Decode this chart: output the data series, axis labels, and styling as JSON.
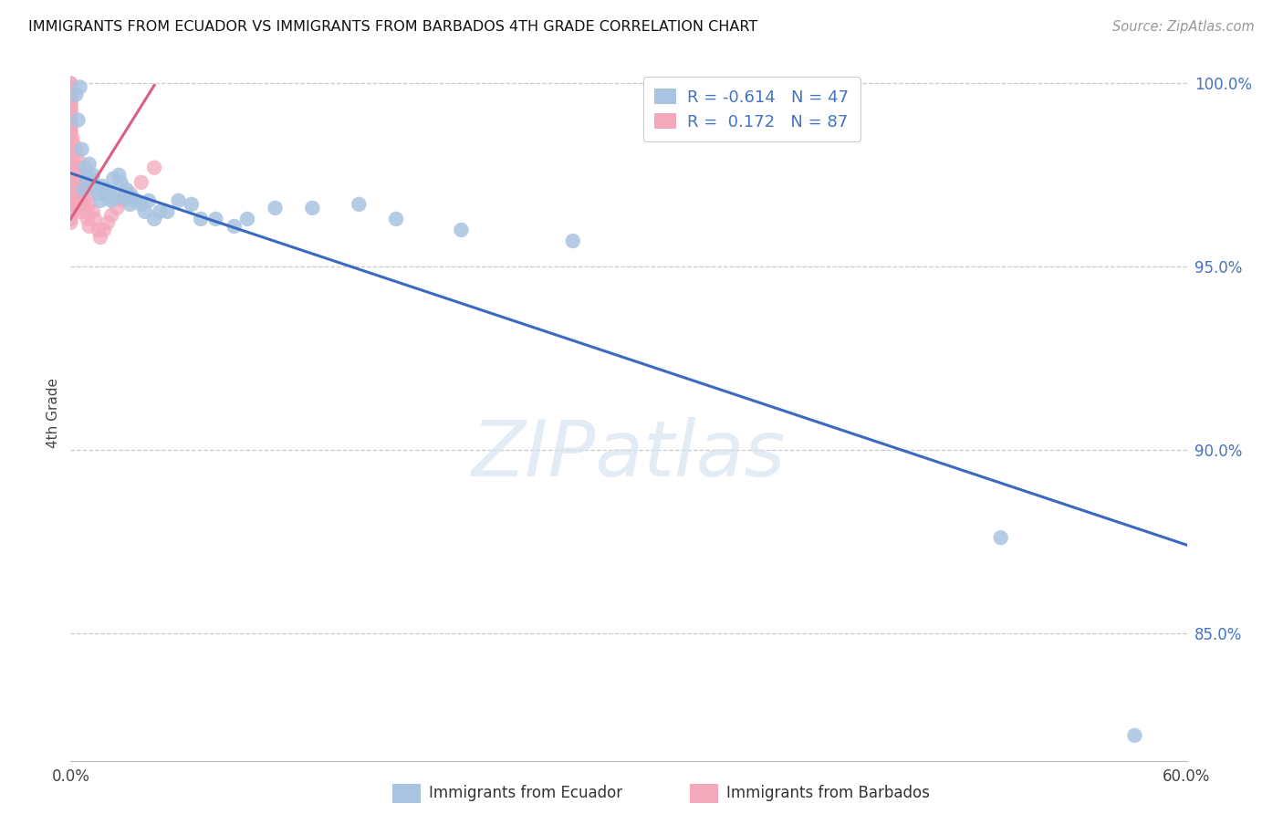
{
  "title": "IMMIGRANTS FROM ECUADOR VS IMMIGRANTS FROM BARBADOS 4TH GRADE CORRELATION CHART",
  "source": "Source: ZipAtlas.com",
  "ylabel": "4th Grade",
  "xlim": [
    0.0,
    0.6
  ],
  "ylim": [
    0.815,
    1.005
  ],
  "grid_color": "#cccccc",
  "background_color": "#ffffff",
  "ecuador_color": "#a8c4e0",
  "barbados_color": "#f4a8bc",
  "ecuador_line_color": "#3a6abf",
  "barbados_line_color": "#d96080",
  "legend_ecuador_label": "Immigrants from Ecuador",
  "legend_barbados_label": "Immigrants from Barbados",
  "R_ecuador": -0.614,
  "N_ecuador": 47,
  "R_barbados": 0.172,
  "N_barbados": 87,
  "ecuador_x": [
    0.003,
    0.004,
    0.005,
    0.006,
    0.007,
    0.008,
    0.009,
    0.01,
    0.011,
    0.012,
    0.013,
    0.015,
    0.016,
    0.017,
    0.018,
    0.02,
    0.021,
    0.022,
    0.023,
    0.025,
    0.026,
    0.027,
    0.029,
    0.03,
    0.032,
    0.033,
    0.035,
    0.038,
    0.04,
    0.042,
    0.045,
    0.048,
    0.052,
    0.058,
    0.065,
    0.07,
    0.078,
    0.088,
    0.095,
    0.11,
    0.13,
    0.155,
    0.175,
    0.21,
    0.27,
    0.5,
    0.572
  ],
  "ecuador_y": [
    0.997,
    0.99,
    0.999,
    0.982,
    0.971,
    0.977,
    0.974,
    0.978,
    0.974,
    0.975,
    0.972,
    0.97,
    0.968,
    0.972,
    0.971,
    0.969,
    0.97,
    0.968,
    0.974,
    0.969,
    0.975,
    0.973,
    0.969,
    0.971,
    0.967,
    0.969,
    0.968,
    0.967,
    0.965,
    0.968,
    0.963,
    0.965,
    0.965,
    0.968,
    0.967,
    0.963,
    0.963,
    0.961,
    0.963,
    0.966,
    0.966,
    0.967,
    0.963,
    0.96,
    0.957,
    0.876,
    0.822
  ],
  "barbados_x": [
    0.0,
    0.0,
    0.0,
    0.0,
    0.0,
    0.0,
    0.0,
    0.0,
    0.0,
    0.0,
    0.0,
    0.0,
    0.0,
    0.0,
    0.0,
    0.0,
    0.0,
    0.0,
    0.0,
    0.0,
    0.0,
    0.0,
    0.0,
    0.0,
    0.0,
    0.0,
    0.0,
    0.0,
    0.0,
    0.0,
    0.0,
    0.0,
    0.0,
    0.0,
    0.0,
    0.0,
    0.0,
    0.0,
    0.0,
    0.0,
    0.0,
    0.0,
    0.0,
    0.0,
    0.0,
    0.0,
    0.0,
    0.0,
    0.0,
    0.0,
    0.001,
    0.001,
    0.001,
    0.002,
    0.002,
    0.002,
    0.003,
    0.003,
    0.003,
    0.004,
    0.004,
    0.004,
    0.005,
    0.005,
    0.005,
    0.006,
    0.006,
    0.007,
    0.007,
    0.008,
    0.008,
    0.009,
    0.009,
    0.01,
    0.01,
    0.012,
    0.013,
    0.015,
    0.016,
    0.018,
    0.02,
    0.022,
    0.025,
    0.028,
    0.032,
    0.038,
    0.045
  ],
  "barbados_y": [
    1.0,
    1.0,
    0.999,
    0.999,
    0.998,
    0.998,
    0.997,
    0.997,
    0.997,
    0.996,
    0.996,
    0.995,
    0.995,
    0.994,
    0.994,
    0.993,
    0.993,
    0.992,
    0.992,
    0.991,
    0.99,
    0.99,
    0.989,
    0.988,
    0.987,
    0.987,
    0.986,
    0.985,
    0.984,
    0.983,
    0.982,
    0.981,
    0.98,
    0.979,
    0.978,
    0.977,
    0.975,
    0.974,
    0.973,
    0.972,
    0.971,
    0.97,
    0.969,
    0.968,
    0.967,
    0.966,
    0.965,
    0.964,
    0.963,
    0.962,
    0.985,
    0.978,
    0.972,
    0.983,
    0.976,
    0.97,
    0.981,
    0.974,
    0.968,
    0.979,
    0.973,
    0.967,
    0.977,
    0.971,
    0.965,
    0.975,
    0.969,
    0.973,
    0.967,
    0.971,
    0.965,
    0.969,
    0.963,
    0.967,
    0.961,
    0.965,
    0.963,
    0.96,
    0.958,
    0.96,
    0.962,
    0.964,
    0.966,
    0.968,
    0.97,
    0.973,
    0.977
  ],
  "ecuador_trend_x0": 0.0,
  "ecuador_trend_y0": 0.9755,
  "ecuador_trend_x1": 0.6,
  "ecuador_trend_y1": 0.874,
  "barbados_trend_x0": 0.0,
  "barbados_trend_y0": 0.963,
  "barbados_trend_x1": 0.045,
  "barbados_trend_y1": 0.9995,
  "yticks_right": [
    1.0,
    0.95,
    0.9,
    0.85
  ],
  "yticklabels_right": [
    "100.0%",
    "95.0%",
    "90.0%",
    "85.0%"
  ]
}
